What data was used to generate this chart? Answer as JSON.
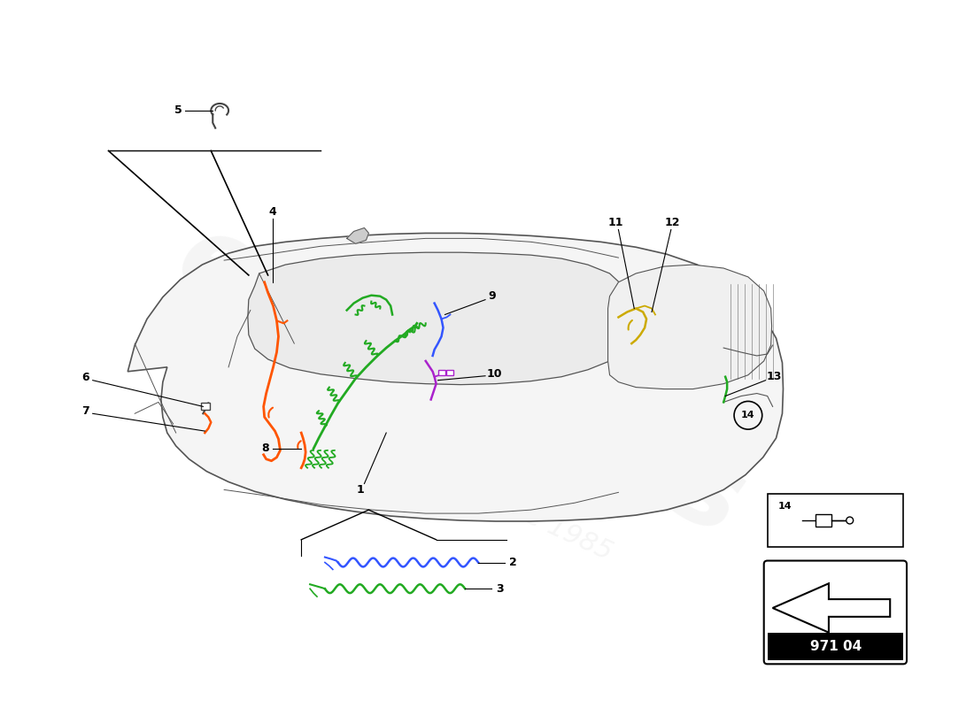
{
  "background_color": "#ffffff",
  "watermark_line1": "europarts",
  "watermark_line2": "a passion for parts since 1985",
  "part_number": "971 04",
  "wiring_green": "#22aa22",
  "wiring_orange": "#ff5500",
  "wiring_blue": "#3355ff",
  "wiring_purple": "#aa22cc",
  "wiring_yellow": "#ccaa00",
  "line_color": "#444444",
  "label_fontsize": 9,
  "car_face": "#f5f5f5",
  "car_edge": "#555555"
}
